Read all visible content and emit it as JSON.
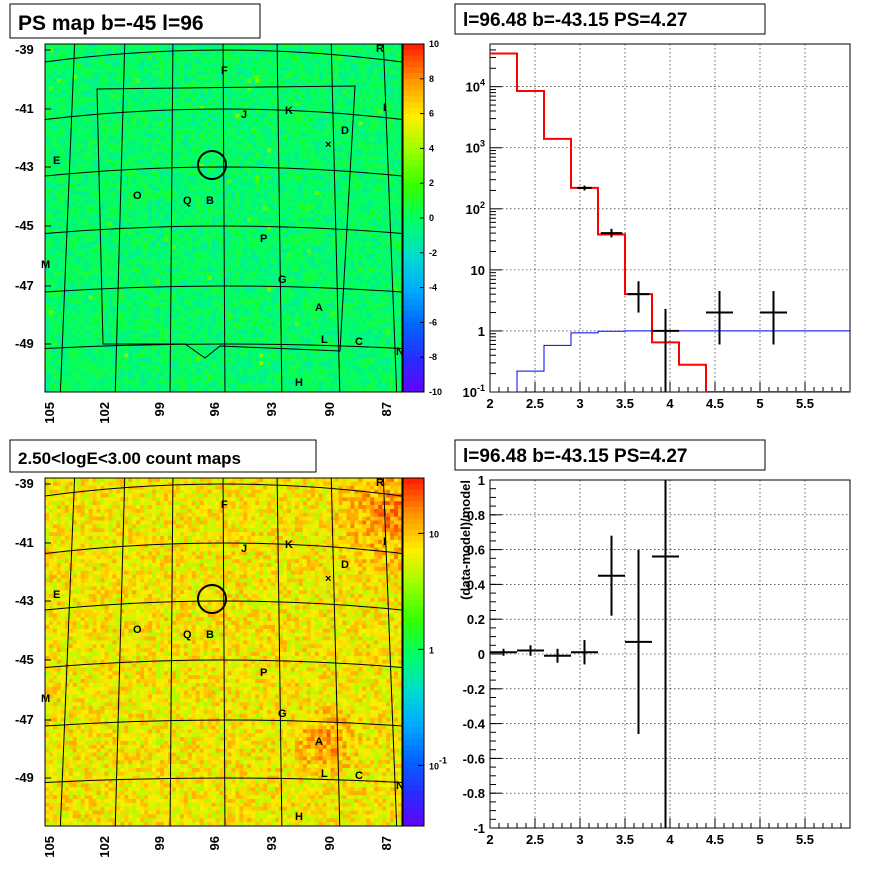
{
  "chart_data": [
    {
      "type": "heatmap",
      "title": "PS map b=-45 l=96",
      "x_ticks": [
        "105",
        "102",
        "99",
        "96",
        "93",
        "90",
        "87"
      ],
      "y_ticks": [
        "-39",
        "-41",
        "-43",
        "-45",
        "-47",
        "-49"
      ],
      "colorbar": {
        "scale": "linear",
        "range": [
          -10,
          10
        ],
        "ticks": [
          "10",
          "8",
          "6",
          "4",
          "2",
          "0",
          "-2",
          "-4",
          "-6",
          "-8",
          "-10"
        ]
      },
      "sources": [
        "R",
        "F",
        "J",
        "K",
        "I",
        "D",
        "E",
        "O",
        "Q",
        "B",
        "P",
        "M",
        "G",
        "A",
        "L",
        "C",
        "N",
        "H"
      ],
      "circle_marker": "target position"
    },
    {
      "type": "line",
      "title": "l=96.48 b=-43.15 PS=4.27",
      "xlim": [
        2,
        6
      ],
      "ylim": [
        0.1,
        50000
      ],
      "yscale": "log",
      "x_ticks": [
        "2",
        "2.5",
        "3",
        "3.5",
        "4",
        "4.5",
        "5",
        "5.5"
      ],
      "y_ticks": [
        "10^4",
        "10^3",
        "10^2",
        "10",
        "1",
        "10^-1"
      ],
      "grid": true,
      "series": [
        {
          "style": "step",
          "color": "#ff0000",
          "edges": [
            2.0,
            2.3,
            2.6,
            2.9,
            3.2,
            3.5,
            3.8,
            4.1,
            4.4,
            6.0
          ],
          "values": [
            35000,
            8500,
            1400,
            220,
            38,
            4,
            0.65,
            0.28,
            0.1
          ]
        },
        {
          "style": "step",
          "color": "#0000ff",
          "edges": [
            2.0,
            2.3,
            2.6,
            2.9,
            3.2,
            3.5,
            3.8,
            4.1,
            4.4,
            6.0
          ],
          "values": [
            0.07,
            0.22,
            0.58,
            0.93,
            0.99,
            1.0,
            1.0,
            1.0,
            1.0
          ]
        },
        {
          "style": "errorbar",
          "color": "#000000",
          "points": [
            {
              "x": 3.05,
              "y": 220,
              "xerr": 0.08,
              "lo": 200,
              "hi": 240
            },
            {
              "x": 3.35,
              "y": 40,
              "xerr": 0.12,
              "lo": 34,
              "hi": 47
            },
            {
              "x": 3.65,
              "y": 4,
              "xerr": 0.12,
              "lo": 2,
              "hi": 6.5
            },
            {
              "x": 3.95,
              "y": 1,
              "xerr": 0.15,
              "lo": 0.1,
              "hi": 2.3
            },
            {
              "x": 4.55,
              "y": 2,
              "xerr": 0.15,
              "lo": 0.6,
              "hi": 4.5
            },
            {
              "x": 5.15,
              "y": 2,
              "xerr": 0.15,
              "lo": 0.6,
              "hi": 4.5
            }
          ]
        }
      ]
    },
    {
      "type": "heatmap",
      "title": "2.50<logE<3.00 count maps",
      "x_ticks": [
        "105",
        "102",
        "99",
        "96",
        "93",
        "90",
        "87"
      ],
      "y_ticks": [
        "-39",
        "-41",
        "-43",
        "-45",
        "-47",
        "-49"
      ],
      "colorbar": {
        "scale": "log",
        "range": [
          0.03,
          30
        ],
        "ticks": [
          "10",
          "1",
          "10^-1"
        ]
      },
      "sources": [
        "R",
        "F",
        "J",
        "K",
        "I",
        "D",
        "E",
        "O",
        "Q",
        "B",
        "P",
        "M",
        "G",
        "A",
        "L",
        "C",
        "N",
        "H"
      ]
    },
    {
      "type": "scatter",
      "title": "l=96.48 b=-43.15 PS=4.27",
      "xlim": [
        2,
        6
      ],
      "ylim": [
        -1,
        1
      ],
      "ylabel": "(data-model)/model",
      "x_ticks": [
        "2",
        "2.5",
        "3",
        "3.5",
        "4",
        "4.5",
        "5",
        "5.5"
      ],
      "y_ticks": [
        "1",
        "0.8",
        "0.6",
        "0.4",
        "0.2",
        "0",
        "-0.2",
        "-0.4",
        "-0.6",
        "-0.8",
        "-1"
      ],
      "grid": true,
      "points": [
        {
          "x": 2.15,
          "y": 0.01,
          "xerr": 0.15,
          "err": 0.02
        },
        {
          "x": 2.45,
          "y": 0.02,
          "xerr": 0.15,
          "err": 0.03
        },
        {
          "x": 2.75,
          "y": -0.01,
          "xerr": 0.15,
          "err": 0.04
        },
        {
          "x": 3.05,
          "y": 0.01,
          "xerr": 0.15,
          "err": 0.07
        },
        {
          "x": 3.35,
          "y": 0.45,
          "xerr": 0.15,
          "err": 0.23
        },
        {
          "x": 3.65,
          "y": 0.07,
          "xerr": 0.15,
          "err": 0.53
        },
        {
          "x": 3.95,
          "y": 0.56,
          "xerr": 0.15,
          "err": 1.6
        }
      ]
    }
  ]
}
